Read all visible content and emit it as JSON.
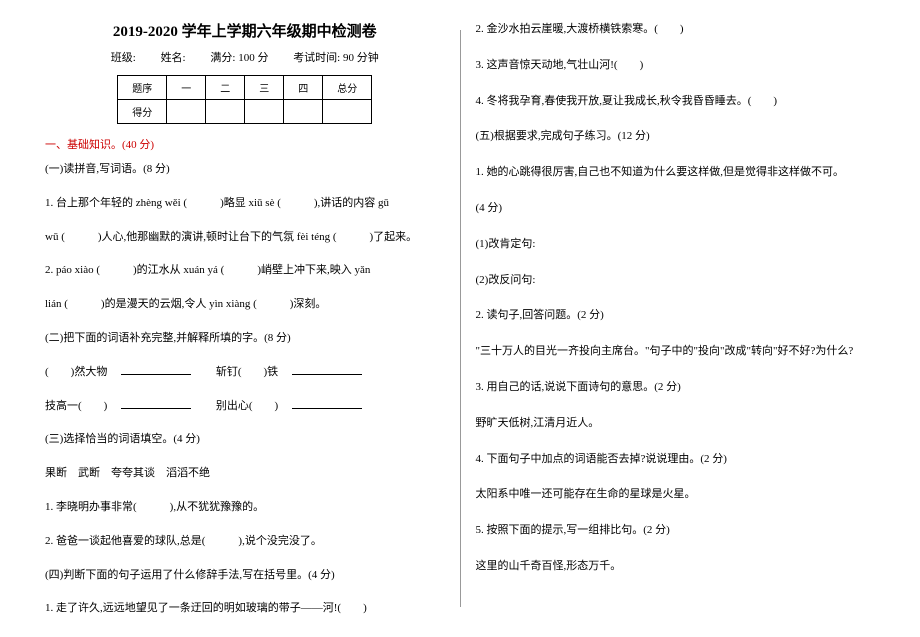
{
  "header": {
    "title": "2019-2020 学年上学期六年级期中检测卷",
    "class_label": "班级:",
    "name_label": "姓名:",
    "full_score_label": "满分:",
    "full_score_value": "100 分",
    "time_label": "考试时间:",
    "time_value": "90 分钟"
  },
  "score_table": {
    "row1": [
      "题序",
      "一",
      "二",
      "三",
      "四",
      "总分"
    ],
    "row2": [
      "得分",
      "",
      "",
      "",
      "",
      ""
    ]
  },
  "left": {
    "section1_title": "一、基础知识。(40 分)",
    "q_yi": "(一)读拼音,写词语。(8 分)",
    "q1_pre": "1. 台上那个年轻的 ",
    "q1_py1": "zhèng wěi",
    "q1_mid1": "(　　　)略显 ",
    "q1_py2": "xiū sè",
    "q1_mid2": "(　　　),讲话的内容 ",
    "q1_py3": "gū",
    "q1_py4": "wū",
    "q1_mid3": "(　　　)人心,他那幽默的演讲,顿时让台下的气氛 ",
    "q1_py5": "fèi téng",
    "q1_end": "(　　　)了起来。",
    "q2_pre": "2. ",
    "q2_py1": "páo xiào",
    "q2_mid1": "(　　　)的江水从 ",
    "q2_py2": "xuán yá",
    "q2_mid2": "(　　　)峭壁上冲下来,映入 ",
    "q2_py3": "yǎn",
    "q2_py4": "lián",
    "q2_mid3": "(　　　)的是漫天的云烟,令人 ",
    "q2_py5": "yìn xiàng",
    "q2_end": "(　　　)深刻。",
    "q_er": "(二)把下面的词语补充完整,并解释所填的字。(8 分)",
    "q_er_line1a": "(　　)然大物",
    "q_er_line1b": "斩钉(　　)铁",
    "q_er_line2a": "技高一(　　)",
    "q_er_line2b": "别出心(　　)",
    "q_san": "(三)选择恰当的词语填空。(4 分)",
    "q_san_words": "果断　武断　夸夸其谈　滔滔不绝",
    "q_san_1": "1. 李晓明办事非常(　　　),从不犹犹豫豫的。",
    "q_san_2": "2. 爸爸一谈起他喜爱的球队,总是(　　　),说个没完没了。",
    "q_si": "(四)判断下面的句子运用了什么修辞手法,写在括号里。(4 分)",
    "q_si_1": "1. 走了许久,远远地望见了一条迂回的明如玻璃的带子——河!(　　)"
  },
  "right": {
    "r2": "2. 金沙水拍云崖暖,大渡桥横铁索寒。(　　)",
    "r3": "3. 这声音惊天动地,气壮山河!(　　)",
    "r4": "4. 冬将我孕育,春使我开放,夏让我成长,秋令我昏昏睡去。(　　)",
    "q_wu": "(五)根据要求,完成句子练习。(12 分)",
    "wu_1": "1. 她的心跳得很厉害,自己也不知道为什么要这样做,但是觉得非这样做不可。",
    "wu_1_pts": "(4 分)",
    "wu_1_a": "(1)改肯定句:",
    "wu_1_b": "(2)改反问句:",
    "wu_2": "2. 读句子,回答问题。(2 分)",
    "wu_2_text": "\"三十万人的目光一齐投向主席台。\"句子中的\"投向\"改成\"转向\"好不好?为什么?",
    "wu_3": "3. 用自己的话,说说下面诗句的意思。(2 分)",
    "wu_3_text": "野旷天低树,江清月近人。",
    "wu_4": "4. 下面句子中加点的词语能否去掉?说说理由。(2 分)",
    "wu_4_text": "太阳系中唯一还可能存在生命的星球是火星。",
    "wu_5": "5. 按照下面的提示,写一组排比句。(2 分)",
    "wu_5_text": "这里的山千奇百怪,形态万千。"
  }
}
